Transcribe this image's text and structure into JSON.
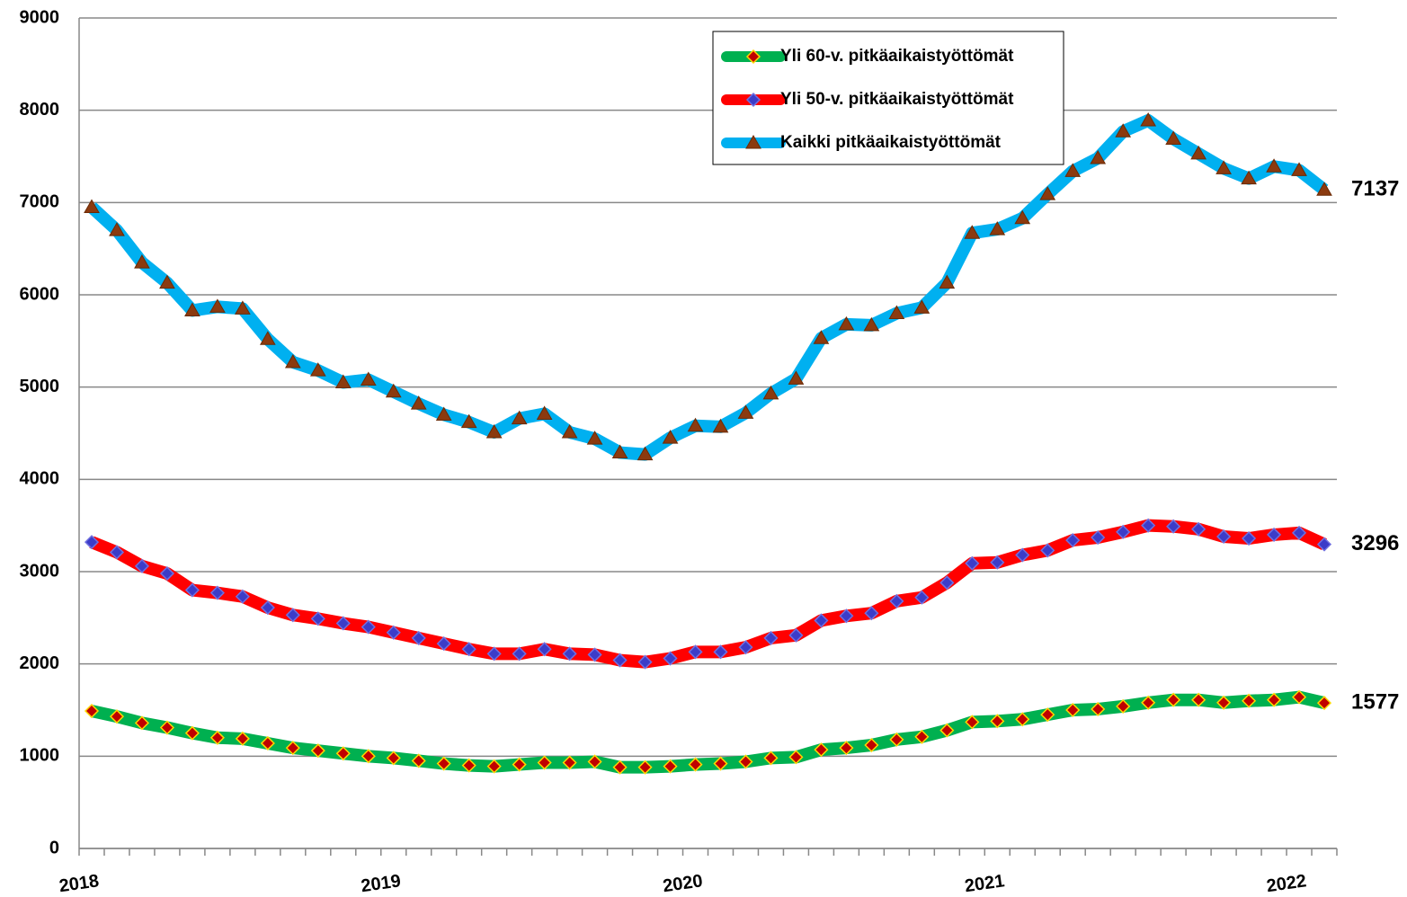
{
  "chart_data": {
    "type": "line",
    "categories": [
      "2018",
      null,
      null,
      null,
      null,
      null,
      null,
      null,
      null,
      null,
      null,
      null,
      "2019",
      null,
      null,
      null,
      null,
      null,
      null,
      null,
      null,
      null,
      null,
      null,
      "2020",
      null,
      null,
      null,
      null,
      null,
      null,
      null,
      null,
      null,
      null,
      null,
      "2021",
      null,
      null,
      null,
      null,
      null,
      null,
      null,
      null,
      null,
      null,
      null,
      "2022",
      null
    ],
    "series": [
      {
        "name": "Yli 60-v. pitkäaikaistyöttömät",
        "color": "#00b050",
        "marker": "diamond",
        "marker_color": "#c00000",
        "marker_edge": "#ffd700",
        "values": [
          1490,
          1430,
          1360,
          1310,
          1250,
          1200,
          1190,
          1140,
          1090,
          1060,
          1030,
          1000,
          980,
          950,
          920,
          900,
          890,
          910,
          930,
          930,
          940,
          880,
          880,
          890,
          910,
          920,
          940,
          980,
          990,
          1070,
          1090,
          1120,
          1180,
          1210,
          1280,
          1370,
          1380,
          1400,
          1450,
          1500,
          1510,
          1540,
          1580,
          1610,
          1610,
          1580,
          1600,
          1610,
          1640,
          1577
        ]
      },
      {
        "name": "Yli 50-v. pitkäaikaistyöttömät",
        "color": "#ff0000",
        "marker": "diamond",
        "marker_color": "#3c3cc8",
        "marker_edge": "#7070e0",
        "values": [
          3320,
          3210,
          3060,
          2980,
          2800,
          2770,
          2730,
          2610,
          2530,
          2490,
          2440,
          2400,
          2340,
          2280,
          2220,
          2160,
          2110,
          2110,
          2160,
          2110,
          2100,
          2040,
          2020,
          2060,
          2130,
          2130,
          2180,
          2280,
          2310,
          2470,
          2520,
          2550,
          2680,
          2720,
          2880,
          3090,
          3100,
          3180,
          3230,
          3340,
          3370,
          3430,
          3500,
          3490,
          3460,
          3380,
          3360,
          3400,
          3420,
          3296
        ]
      },
      {
        "name": "Kaikki pitkäaikaistyöttömät",
        "color": "#00b0f0",
        "marker": "triangle",
        "marker_color": "#8b3a0f",
        "marker_edge": "#6b2a05",
        "values": [
          6950,
          6700,
          6350,
          6130,
          5830,
          5870,
          5850,
          5520,
          5270,
          5180,
          5050,
          5080,
          4950,
          4820,
          4700,
          4620,
          4510,
          4660,
          4710,
          4510,
          4440,
          4290,
          4270,
          4450,
          4580,
          4570,
          4720,
          4930,
          5090,
          5530,
          5680,
          5670,
          5800,
          5860,
          6130,
          6670,
          6710,
          6830,
          7090,
          7340,
          7480,
          7770,
          7890,
          7690,
          7530,
          7370,
          7260,
          7390,
          7350,
          7137
        ]
      }
    ],
    "ylim": [
      0,
      9000
    ],
    "yticks": [
      0,
      1000,
      2000,
      3000,
      4000,
      5000,
      6000,
      7000,
      8000,
      9000
    ],
    "grid": true
  }
}
